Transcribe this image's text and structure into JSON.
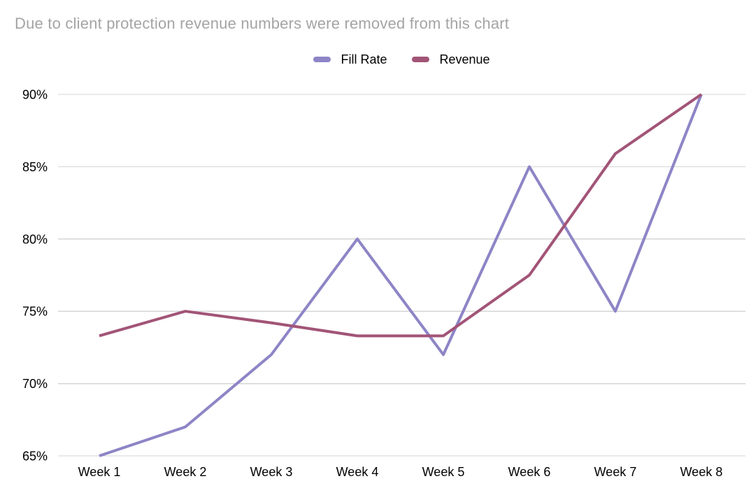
{
  "chart_data": {
    "type": "line",
    "title": "Due to client protection revenue numbers were removed from this chart",
    "title_color": "#a4a4a4",
    "categories": [
      "Week 1",
      "Week 2",
      "Week 3",
      "Week 4",
      "Week 5",
      "Week 6",
      "Week 7",
      "Week 8"
    ],
    "series": [
      {
        "name": "Fill Rate",
        "color": "#8d85c6",
        "values": [
          65,
          67,
          72,
          80,
          72,
          85,
          75,
          90
        ]
      },
      {
        "name": "Revenue",
        "color": "#a25477",
        "values": [
          73.3,
          75,
          74.2,
          73.3,
          73.3,
          77.5,
          85.9,
          90
        ]
      }
    ],
    "xlabel": "",
    "ylabel": "",
    "ylim": [
      65,
      90
    ],
    "y_ticks": [
      {
        "value": 65,
        "label": "65%"
      },
      {
        "value": 70,
        "label": "70%"
      },
      {
        "value": 75,
        "label": "75%"
      },
      {
        "value": 80,
        "label": "80%"
      },
      {
        "value": 85,
        "label": "85%"
      },
      {
        "value": 90,
        "label": "90%"
      }
    ],
    "grid": true,
    "gridline_color": "#d5d5d5",
    "axis_label_color": "#000000",
    "legend_position": "top"
  }
}
